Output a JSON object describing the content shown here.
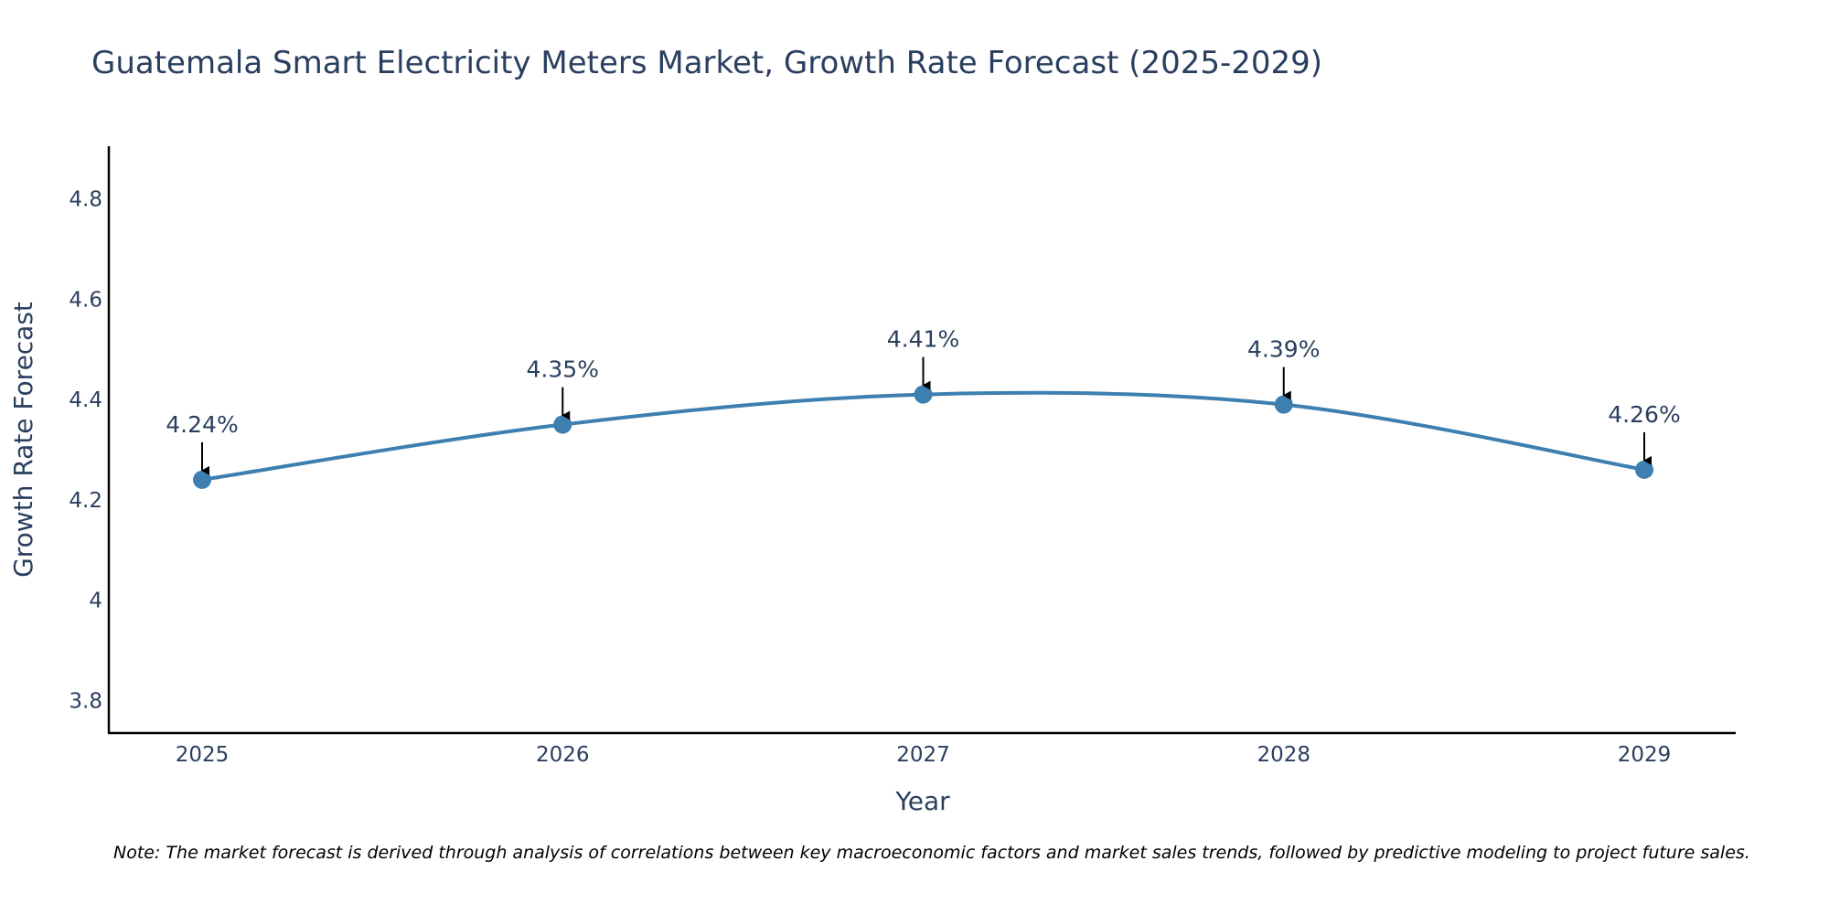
{
  "chart_data": {
    "type": "line",
    "title": "Guatemala Smart Electricity Meters Market, Growth Rate Forecast (2025-2029)",
    "xlabel": "Year",
    "ylabel": "Growth Rate Forecast",
    "categories": [
      "2025",
      "2026",
      "2027",
      "2028",
      "2029"
    ],
    "values": [
      4.24,
      4.35,
      4.41,
      4.39,
      4.26
    ],
    "data_labels": [
      "4.24%",
      "4.35%",
      "4.41%",
      "4.39%",
      "4.26%"
    ],
    "ylim": [
      3.735,
      4.905
    ],
    "yticks": [
      3.8,
      4,
      4.2,
      4.4,
      4.6,
      4.8
    ],
    "ytick_labels": [
      "3.8",
      "4",
      "4.2",
      "4.4",
      "4.6",
      "4.8"
    ],
    "grid": false,
    "line_shape": "spline",
    "colors": {
      "line": "#3d7fb0",
      "marker": "#3d7fb0",
      "axis": "#000000",
      "text": "#2a3f5f",
      "arrow": "#000000"
    }
  },
  "note": "Note: The market forecast is derived through analysis of correlations between key macroeconomic factors and market sales trends, followed by predictive modeling to project future sales."
}
